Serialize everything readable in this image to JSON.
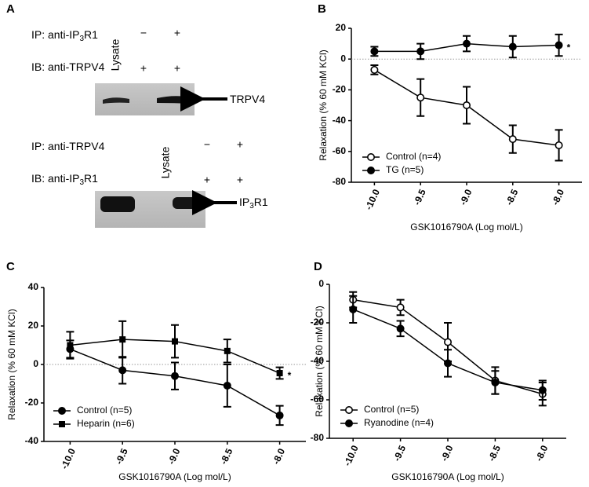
{
  "blot": {
    "label": "A",
    "sections": [
      {
        "ip": [
          "IP: anti-IP",
          "3",
          "R1"
        ],
        "ib": [
          "IB: anti-TRPV4"
        ],
        "lane": "Lysate",
        "ip_marks": [
          "−",
          "+"
        ],
        "ib_marks": [
          "+",
          "+"
        ],
        "band": [
          "TRPV4"
        ]
      },
      {
        "ip": [
          "IP: anti-TRPV4"
        ],
        "ib": [
          "IB: anti-IP",
          "3",
          "R1"
        ],
        "lane": "Lysate",
        "ip_marks": [
          "−",
          "+"
        ],
        "ib_marks": [
          "+",
          "+"
        ],
        "band": [
          "IP",
          "3",
          "R1"
        ]
      }
    ]
  },
  "chart_data": [
    {
      "type": "line",
      "label": "B",
      "xlabel": "GSK1016790A (Log mol/L)",
      "ylabel": "Relaxation (% 60 mM KCl)",
      "x": [
        -10,
        -9.5,
        -9,
        -8.5,
        -8
      ],
      "xlim": [
        -10.25,
        -7.75
      ],
      "xticks": [
        {
          "value": -10,
          "label": "-10.0"
        },
        -9.5,
        {
          "value": -9,
          "label": "-9.0"
        },
        -8.5,
        {
          "value": -8,
          "label": "-8.0"
        }
      ],
      "ylim": [
        -80,
        20
      ],
      "yticks": [
        -80,
        -60,
        -40,
        -20,
        0,
        20
      ],
      "zero_line": true,
      "annotation": "*",
      "series": [
        {
          "name": "Control (n=4)",
          "color": "#000000",
          "marker": "circle-open",
          "values": [
            -7,
            -25,
            -30,
            -52,
            -56
          ],
          "errors": [
            3,
            12,
            12,
            9,
            10
          ]
        },
        {
          "name": "TG (n=5)",
          "color": "#000000",
          "marker": "circle",
          "values": [
            5,
            5,
            10,
            8,
            9
          ],
          "errors": [
            3,
            5,
            5,
            7,
            7
          ]
        }
      ]
    },
    {
      "type": "line",
      "label": "C",
      "xlabel": "GSK1016790A (Log mol/L)",
      "ylabel": "Relaxation (% 60 mM KCl)",
      "x": [
        -10,
        -9.5,
        -9,
        -8.5,
        -8
      ],
      "xlim": [
        -10.25,
        -7.75
      ],
      "xticks": [
        {
          "value": -10,
          "label": "-10.0"
        },
        -9.5,
        {
          "value": -9,
          "label": "-9.0"
        },
        -8.5,
        {
          "value": -8,
          "label": "-8.0"
        }
      ],
      "ylim": [
        -40,
        40
      ],
      "yticks": [
        -40,
        -20,
        0,
        20,
        40
      ],
      "zero_line": true,
      "annotation": "*",
      "series": [
        {
          "name": "Control (n=5)",
          "color": "#000000",
          "marker": "circle",
          "values": [
            8,
            -3,
            -6,
            -11,
            -26.5
          ],
          "errors": [
            4.5,
            7,
            7,
            11,
            5
          ]
        },
        {
          "name": "Heparin (n=6)",
          "color": "#000000",
          "marker": "square",
          "values": [
            10,
            13,
            12,
            7,
            -4.5
          ],
          "errors": [
            7,
            9.5,
            8.5,
            6,
            3
          ]
        }
      ]
    },
    {
      "type": "line",
      "label": "D",
      "xlabel": "GSK1016790A (Log mol/L)",
      "ylabel": "Relaxation (% 60 mM KCl)",
      "x": [
        -10,
        -9.5,
        -9,
        -8.5,
        -8
      ],
      "xlim": [
        -10.25,
        -7.75
      ],
      "xticks": [
        {
          "value": -10,
          "label": "-10.0"
        },
        -9.5,
        {
          "value": -9,
          "label": "-9.0"
        },
        -8.5,
        {
          "value": -8,
          "label": "-8.0"
        }
      ],
      "ylim": [
        -80,
        0
      ],
      "yticks": [
        -80,
        -60,
        -40,
        -20,
        0
      ],
      "zero_line": false,
      "series": [
        {
          "name": "Control (n=5)",
          "color": "#000000",
          "marker": "circle-open",
          "values": [
            -8,
            -12,
            -30,
            -50,
            -57
          ],
          "errors": [
            4,
            4,
            10,
            7,
            6
          ]
        },
        {
          "name": "Ryanodine (n=4)",
          "color": "#000000",
          "marker": "circle",
          "values": [
            -13,
            -23,
            -41,
            -51,
            -55
          ],
          "errors": [
            7,
            4,
            7,
            6,
            5
          ]
        }
      ]
    }
  ]
}
